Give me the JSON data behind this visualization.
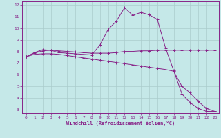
{
  "xlabel": "Windchill (Refroidissement éolien,°C)",
  "bg_color": "#c5e8e8",
  "line_color": "#882288",
  "grid_color": "#aacccc",
  "xlim": [
    -0.5,
    23.5
  ],
  "ylim": [
    2.7,
    12.3
  ],
  "xticks": [
    0,
    1,
    2,
    3,
    4,
    5,
    6,
    7,
    8,
    9,
    10,
    11,
    12,
    13,
    14,
    15,
    16,
    17,
    18,
    19,
    20,
    21,
    22,
    23
  ],
  "yticks": [
    3,
    4,
    5,
    6,
    7,
    8,
    9,
    10,
    11,
    12
  ],
  "line1_x": [
    0,
    1,
    2,
    3,
    4,
    5,
    6,
    7,
    8,
    9,
    10,
    11,
    12,
    13,
    14,
    15,
    16,
    17,
    18,
    19,
    20,
    21,
    22,
    23
  ],
  "line1_y": [
    7.55,
    7.9,
    8.15,
    8.1,
    7.9,
    7.85,
    7.8,
    7.75,
    7.7,
    8.55,
    9.9,
    10.6,
    11.75,
    11.1,
    11.35,
    11.15,
    10.75,
    8.3,
    6.35,
    4.35,
    3.6,
    3.1,
    2.85,
    2.85
  ],
  "line2_x": [
    0,
    1,
    2,
    3,
    4,
    5,
    6,
    7,
    8,
    9,
    10,
    11,
    12,
    13,
    14,
    15,
    16,
    17,
    18,
    19,
    20,
    21,
    22,
    23
  ],
  "line2_y": [
    7.55,
    7.85,
    8.05,
    8.1,
    8.05,
    8.0,
    7.95,
    7.9,
    7.85,
    7.85,
    7.85,
    7.9,
    8.0,
    8.0,
    8.05,
    8.05,
    8.1,
    8.1,
    8.1,
    8.1,
    8.1,
    8.1,
    8.1,
    8.1
  ],
  "line3_x": [
    0,
    1,
    2,
    3,
    4,
    5,
    6,
    7,
    8,
    9,
    10,
    11,
    12,
    13,
    14,
    15,
    16,
    17,
    18,
    19,
    20,
    21,
    22,
    23
  ],
  "line3_y": [
    7.55,
    7.75,
    7.8,
    7.8,
    7.75,
    7.65,
    7.55,
    7.45,
    7.35,
    7.25,
    7.15,
    7.05,
    6.95,
    6.85,
    6.75,
    6.65,
    6.55,
    6.45,
    6.3,
    5.0,
    4.45,
    3.7,
    3.1,
    2.85
  ]
}
